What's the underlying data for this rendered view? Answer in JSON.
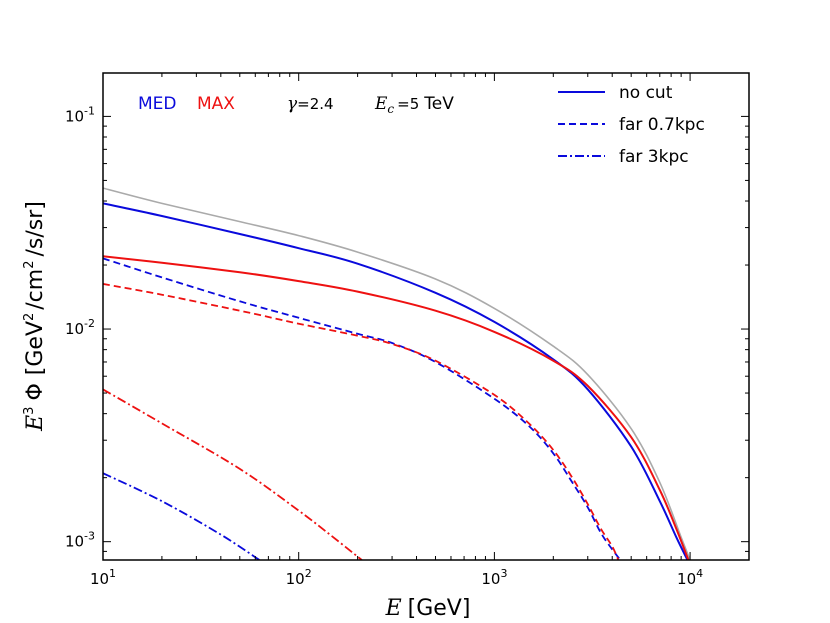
{
  "chart_data": {
    "type": "line",
    "x_scale": "log",
    "y_scale": "log",
    "xlim": [
      10,
      20000
    ],
    "ylim": [
      0.00082,
      0.16
    ],
    "xticks": [
      {
        "label": "10",
        "exp": "1",
        "value": 10
      },
      {
        "label": "10",
        "exp": "2",
        "value": 100
      },
      {
        "label": "10",
        "exp": "3",
        "value": 1000
      },
      {
        "label": "10",
        "exp": "4",
        "value": 10000
      }
    ],
    "yticks": [
      {
        "label": "10",
        "exp": "-3",
        "value": 0.001
      },
      {
        "label": "10",
        "exp": "-2",
        "value": 0.01
      },
      {
        "label": "10",
        "exp": "-1",
        "value": 0.1
      }
    ],
    "xlabel": {
      "var": "E",
      "unit": "[GeV]"
    },
    "ylabel": {
      "var": "E",
      "var_exp": "3",
      "phi": "Φ",
      "unit_pre": "[GeV",
      "unit_pre_exp": "2",
      "unit_mid": "/cm",
      "unit_mid_exp": "2",
      "unit_post": "/s/sr]"
    },
    "annotations": {
      "med": "MED",
      "max": "MAX",
      "gamma_symbol": "γ",
      "gamma_eq": "=2.4",
      "ec_symbol": "E",
      "ec_sub": "c",
      "ec_eq": "=5",
      "ec_unit": "TeV"
    },
    "legend": {
      "position": "top-right",
      "entries": [
        {
          "label": "no cut",
          "style": "solid"
        },
        {
          "label": "far 0.7kpc",
          "style": "dashed"
        },
        {
          "label": "far 3kpc",
          "style": "dashdot"
        }
      ]
    },
    "colors": {
      "MED": "#0a0adc",
      "MAX": "#ee1111",
      "reference": "#aaaaaa"
    },
    "series": [
      {
        "name": "total (grey)",
        "color": "#aaaaaa",
        "style": "solid",
        "width": 1.6,
        "x": [
          10,
          20,
          50,
          100,
          200,
          500,
          1000,
          2000,
          3000,
          5000,
          7000,
          9000,
          10000
        ],
        "y": [
          0.046,
          0.039,
          0.032,
          0.0275,
          0.023,
          0.0172,
          0.0125,
          0.0083,
          0.0061,
          0.0034,
          0.0019,
          0.00105,
          0.00082
        ]
      },
      {
        "name": "MED no cut",
        "color": "#0a0adc",
        "style": "solid",
        "width": 2,
        "x": [
          10,
          20,
          50,
          100,
          200,
          500,
          1000,
          2000,
          3000,
          5000,
          7000,
          8500,
          9700
        ],
        "y": [
          0.039,
          0.034,
          0.028,
          0.024,
          0.0203,
          0.0148,
          0.0108,
          0.0072,
          0.0052,
          0.0028,
          0.00155,
          0.00105,
          0.00082
        ]
      },
      {
        "name": "MAX no cut",
        "color": "#ee1111",
        "style": "solid",
        "width": 2,
        "x": [
          10,
          20,
          50,
          100,
          200,
          500,
          1000,
          2000,
          3000,
          5000,
          7000,
          8500,
          9800
        ],
        "y": [
          0.022,
          0.0205,
          0.0185,
          0.0168,
          0.015,
          0.0122,
          0.0097,
          0.0071,
          0.0054,
          0.0031,
          0.00175,
          0.00115,
          0.00082
        ]
      },
      {
        "name": "MED far 0.7kpc",
        "color": "#0a0adc",
        "style": "dashed",
        "width": 1.8,
        "x": [
          10,
          20,
          50,
          100,
          200,
          300,
          500,
          1000,
          1500,
          2000,
          2500,
          3000,
          3500,
          4000,
          4400
        ],
        "y": [
          0.0215,
          0.0175,
          0.0135,
          0.0113,
          0.0095,
          0.0086,
          0.007,
          0.0047,
          0.0035,
          0.0026,
          0.0019,
          0.00145,
          0.0011,
          0.00092,
          0.00082
        ]
      },
      {
        "name": "MAX far 0.7kpc",
        "color": "#ee1111",
        "style": "dashed",
        "width": 1.8,
        "x": [
          10,
          20,
          50,
          100,
          200,
          300,
          500,
          1000,
          1500,
          2000,
          2500,
          3000,
          3500,
          4000,
          4300
        ],
        "y": [
          0.0163,
          0.0145,
          0.0122,
          0.0106,
          0.0093,
          0.0085,
          0.0071,
          0.0049,
          0.0036,
          0.0027,
          0.002,
          0.0015,
          0.00115,
          0.00095,
          0.00082
        ]
      },
      {
        "name": "MAX far 3kpc",
        "color": "#ee1111",
        "style": "dashdot",
        "width": 1.8,
        "x": [
          10,
          20,
          50,
          100,
          150,
          210
        ],
        "y": [
          0.0052,
          0.0036,
          0.0022,
          0.0014,
          0.00105,
          0.00082
        ]
      },
      {
        "name": "MED far 3kpc",
        "color": "#0a0adc",
        "style": "dashdot",
        "width": 1.8,
        "x": [
          10,
          20,
          40,
          63
        ],
        "y": [
          0.0021,
          0.00155,
          0.00108,
          0.00082
        ]
      }
    ]
  }
}
